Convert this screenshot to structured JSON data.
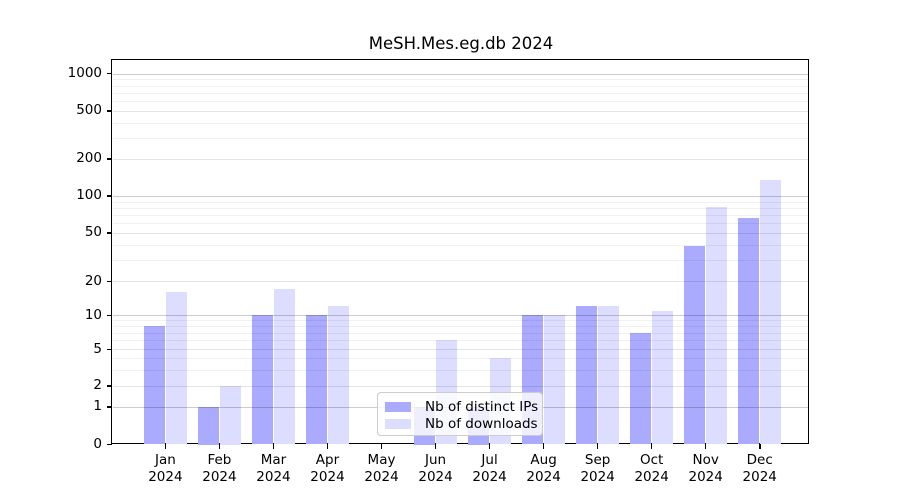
{
  "chart_data": {
    "type": "bar",
    "title": "MeSH.Mes.eg.db 2024",
    "categories": [
      "Jan",
      "Feb",
      "Mar",
      "Apr",
      "May",
      "Jun",
      "Jul",
      "Aug",
      "Sep",
      "Oct",
      "Nov",
      "Dec"
    ],
    "x_year": "2024",
    "series": [
      {
        "name": "Nb of distinct IPs",
        "color": "#aaaaff",
        "values": [
          8,
          1,
          10,
          10,
          0,
          1,
          1,
          10,
          12,
          7,
          39,
          66
        ]
      },
      {
        "name": "Nb of downloads",
        "color": "#ddddff",
        "values": [
          16,
          2,
          17,
          12,
          0,
          6,
          4,
          10,
          12,
          11,
          82,
          135
        ]
      }
    ],
    "yscale": "symlog",
    "y_ticks": [
      0,
      1,
      2,
      5,
      10,
      20,
      50,
      100,
      200,
      500,
      1000
    ],
    "ylim": [
      0,
      1400
    ],
    "xlabel": "",
    "ylabel": "",
    "grid": true,
    "legend_position": "lower-center"
  }
}
